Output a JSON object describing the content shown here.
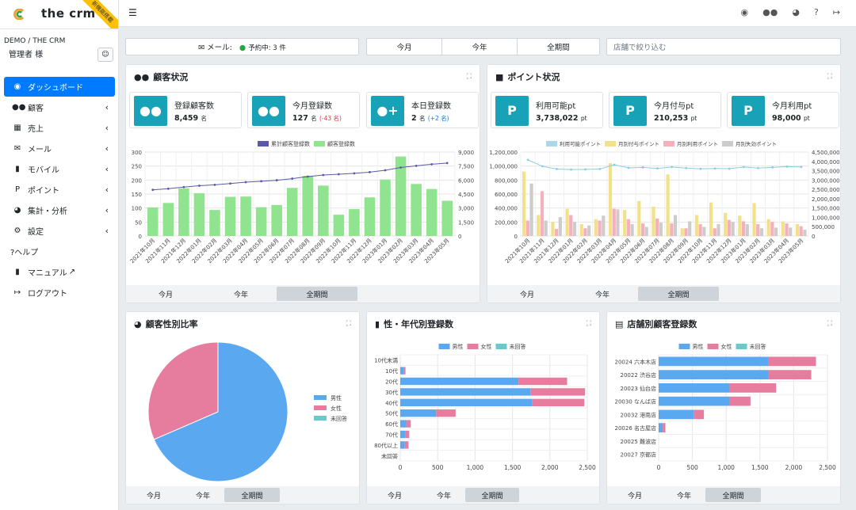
{
  "brand": {
    "name": "the crm",
    "ribbon": "新機能搭載"
  },
  "sidebar": {
    "org": "DEMO / THE CRM",
    "user": "管理者 様",
    "items": [
      {
        "label": "ダッシュボード",
        "icon": "gauge-icon",
        "active": true
      },
      {
        "label": "顧客",
        "icon": "users-icon"
      },
      {
        "label": "売上",
        "icon": "cash-register-icon"
      },
      {
        "label": "メール",
        "icon": "envelope-icon"
      },
      {
        "label": "モバイル",
        "icon": "mobile-icon"
      },
      {
        "label": "ポイント",
        "icon": "p-icon"
      },
      {
        "label": "集計・分析",
        "icon": "pie-chart-icon"
      },
      {
        "label": "設定",
        "icon": "cogs-icon"
      }
    ],
    "help": "?ヘルプ",
    "manual": "マニュアル",
    "logout": "ログアウト"
  },
  "filter": {
    "mail_label": "メール:",
    "reserved": "予約中: 3 件",
    "periods": [
      "今月",
      "今年",
      "全期間"
    ],
    "store_placeholder": "店舗で絞り込む"
  },
  "customer_card": {
    "title": "顧客状況",
    "stats": [
      {
        "label": "登録顧客数",
        "value": "8,459",
        "unit": "名"
      },
      {
        "label": "今月登録数",
        "value": "127",
        "unit": "名",
        "diff": "(-43 名)"
      },
      {
        "label": "本日登録数",
        "value": "2",
        "unit": "名",
        "diff": "(+2 名)"
      }
    ],
    "buttons": [
      "今月",
      "今年",
      "全期間"
    ]
  },
  "point_card": {
    "title": "ポイント状況",
    "stats": [
      {
        "label": "利用可能pt",
        "value": "3,738,022",
        "unit": "pt"
      },
      {
        "label": "今月付与pt",
        "value": "210,253",
        "unit": "pt"
      },
      {
        "label": "今月利用pt",
        "value": "98,000",
        "unit": "pt"
      }
    ],
    "buttons": [
      "今月",
      "今年",
      "全期間"
    ]
  },
  "gender_card": {
    "title": "顧客性別比率",
    "buttons": [
      "今月",
      "今年",
      "全期間"
    ]
  },
  "age_card": {
    "title": "性・年代別登録数",
    "buttons": [
      "今月",
      "今年",
      "全期間"
    ]
  },
  "store_card": {
    "title": "店舗別顧客登録数",
    "buttons": [
      "今月",
      "今年",
      "全期間"
    ]
  },
  "colors": {
    "primary": "#007bff",
    "teal": "#17a2b8",
    "green": "#90e38f",
    "navy": "#5a5aa8",
    "blue": "#5aa8f0",
    "pink": "#e67c9e",
    "cyan": "#6cc9c9"
  },
  "chart_data": [
    {
      "type": "bar",
      "id": "customer",
      "legend": [
        "累計顧客登録数",
        "顧客登録数"
      ],
      "categories": [
        "2021年10月",
        "2021年11月",
        "2021年12月",
        "2022年01月",
        "2022年02月",
        "2022年03月",
        "2022年04月",
        "2022年05月",
        "2022年06月",
        "2022年07月",
        "2022年08月",
        "2022年09月",
        "2022年10月",
        "2022年11月",
        "2022年12月",
        "2023年01月",
        "2023年02月",
        "2023年03月",
        "2023年04月",
        "2023年05月"
      ],
      "bars": [
        102,
        118,
        170,
        153,
        93,
        140,
        141,
        103,
        111,
        172,
        215,
        180,
        76,
        96,
        138,
        202,
        284,
        186,
        168,
        126
      ],
      "line": [
        4950,
        5070,
        5240,
        5390,
        5490,
        5620,
        5770,
        5870,
        5980,
        6150,
        6370,
        6540,
        6620,
        6720,
        6850,
        7050,
        7340,
        7520,
        7690,
        7820
      ],
      "ylim_left": [
        0,
        300
      ],
      "ylim_right": [
        0,
        9000
      ]
    },
    {
      "type": "bar",
      "id": "points",
      "legend": [
        "利用可能ポイント",
        "月別付与ポイント",
        "月別利用ポイント",
        "月別失効ポイント"
      ],
      "categories": [
        "2021年10月",
        "2021年11月",
        "2021年12月",
        "2022年01月",
        "2022年02月",
        "2022年03月",
        "2022年04月",
        "2022年05月",
        "2022年06月",
        "2022年07月",
        "2022年08月",
        "2022年09月",
        "2022年10月",
        "2022年11月",
        "2022年12月",
        "2023年01月",
        "2023年02月",
        "2023年03月",
        "2023年04月",
        "2023年05月"
      ],
      "granted": [
        920000,
        300000,
        200000,
        390000,
        170000,
        240000,
        1040000,
        370000,
        500000,
        420000,
        880000,
        110000,
        300000,
        480000,
        330000,
        290000,
        470000,
        240000,
        210000,
        170000
      ],
      "used": [
        220000,
        640000,
        100000,
        300000,
        110000,
        220000,
        390000,
        240000,
        180000,
        250000,
        180000,
        110000,
        170000,
        110000,
        230000,
        210000,
        170000,
        200000,
        180000,
        140000
      ],
      "expired": [
        750000,
        220000,
        270000,
        200000,
        150000,
        290000,
        380000,
        170000,
        130000,
        190000,
        300000,
        210000,
        130000,
        170000,
        200000,
        170000,
        110000,
        120000,
        120000,
        90000
      ],
      "available_line": [
        4080000,
        3740000,
        3590000,
        3560000,
        3570000,
        3590000,
        3820000,
        3650000,
        3680000,
        3620000,
        3700000,
        3640000,
        3600000,
        3620000,
        3610000,
        3700000,
        3640000,
        3680000,
        3720000,
        3700000
      ],
      "ylim_left": [
        0,
        1200000
      ],
      "ylim_right": [
        0,
        4500000
      ]
    },
    {
      "type": "pie",
      "id": "gender",
      "legend": [
        "男性",
        "女性",
        "未回答"
      ],
      "values": [
        68.5,
        31.5,
        0
      ]
    },
    {
      "type": "bar",
      "orientation": "horizontal",
      "stacked": true,
      "id": "age",
      "legend": [
        "男性",
        "女性",
        "未回答"
      ],
      "categories": [
        "10代未満",
        "10代",
        "20代",
        "30代",
        "40代",
        "50代",
        "60代",
        "70代",
        "80代以上",
        "未回答"
      ],
      "male": [
        0,
        50,
        1580,
        1740,
        1760,
        480,
        80,
        70,
        60,
        0
      ],
      "female": [
        0,
        20,
        650,
        730,
        700,
        260,
        60,
        50,
        50,
        0
      ],
      "unknown": [
        0,
        0,
        0,
        0,
        0,
        0,
        0,
        0,
        0,
        0
      ],
      "xlim": [
        0,
        2500
      ],
      "xticks": [
        "0",
        "500",
        "1,000",
        "1,500",
        "2,000",
        "2,500"
      ]
    },
    {
      "type": "bar",
      "orientation": "horizontal",
      "stacked": true,
      "id": "store",
      "legend": [
        "男性",
        "女性",
        "未回答"
      ],
      "categories": [
        "20024 六本木店",
        "20022 渋谷店",
        "20023 仙台店",
        "20030 なんば店",
        "20032 港南店",
        "20026 名古屋店",
        "20025 難波店",
        "20027 京都店"
      ],
      "male": [
        1620,
        1620,
        1050,
        1050,
        520,
        60,
        0,
        0
      ],
      "female": [
        710,
        640,
        690,
        310,
        150,
        40,
        0,
        0
      ],
      "unknown": [
        0,
        0,
        0,
        0,
        0,
        0,
        0,
        0
      ],
      "xlim": [
        0,
        2500
      ],
      "xticks": [
        "0",
        "500",
        "1,000",
        "1,500",
        "2,000",
        "2,500"
      ]
    }
  ]
}
